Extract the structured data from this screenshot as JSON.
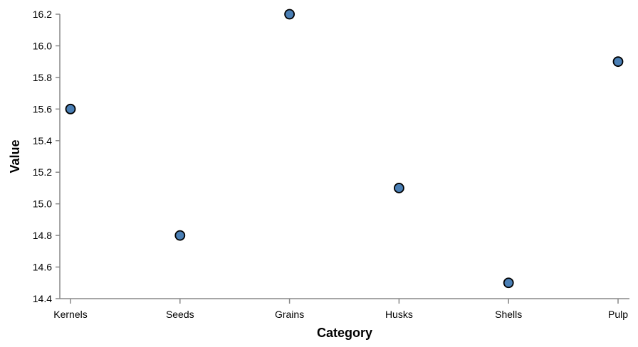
{
  "chart_data": {
    "type": "scatter",
    "title": "",
    "xlabel": "Category",
    "ylabel": "Value",
    "categories": [
      "Kernels",
      "Seeds",
      "Grains",
      "Husks",
      "Shells",
      "Pulp"
    ],
    "values": [
      15.6,
      14.8,
      16.2,
      15.1,
      14.5,
      15.9
    ],
    "ylim": [
      14.4,
      16.2
    ],
    "yticks": [
      "14.4",
      "14.6",
      "14.8",
      "15.0",
      "15.2",
      "15.4",
      "15.6",
      "15.8",
      "16.0",
      "16.2"
    ],
    "grid": false,
    "colors": {
      "point_fill": "#4a7fb5",
      "point_stroke": "#000000",
      "axis": "#888888"
    }
  }
}
